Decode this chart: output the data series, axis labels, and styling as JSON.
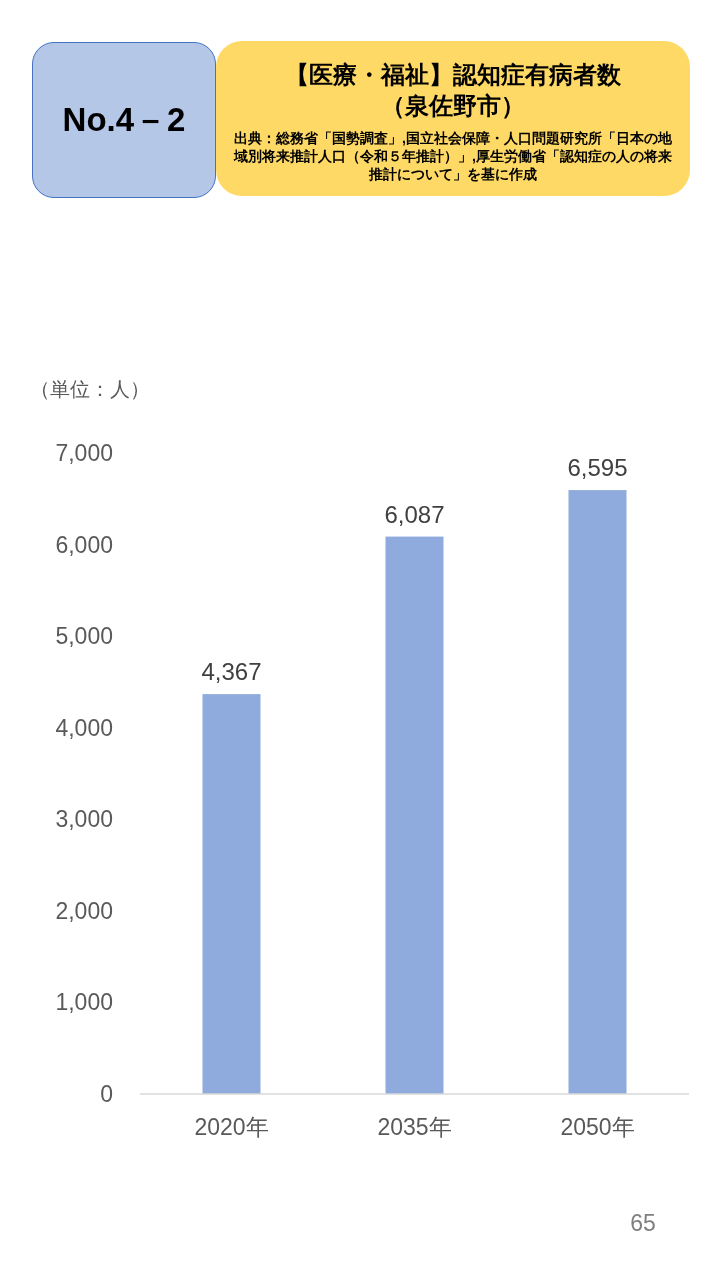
{
  "chart_data": {
    "type": "bar",
    "title": "【医療・福祉】認知症有病者数（泉佐野市）",
    "ylabel": "（単位：人）",
    "annotations": [
      "No.4－2",
      "出典：総務省「国勢調査」,国立社会保障・人口問題研究所「日本の地域別将来推計人口（令和５年推計）」,厚生労働省「認知症の人の将来推計について」を基に作成",
      "65"
    ],
    "categories": [
      "2020年",
      "2035年",
      "2050年"
    ],
    "values": [
      4367,
      6087,
      6595
    ],
    "value_labels": [
      "4,367",
      "6,087",
      "6,595"
    ],
    "color": "#8faadc",
    "ylim": [
      0,
      7000
    ],
    "yticks": [
      0,
      {
        "value": 1000,
        "label": "1,000"
      },
      {
        "value": 2000,
        "label": "2,000"
      },
      {
        "value": 3000,
        "label": "3,000"
      },
      {
        "value": 4000,
        "label": "4,000"
      },
      {
        "value": 5000,
        "label": "5,000"
      },
      {
        "value": 6000,
        "label": "6,000"
      },
      {
        "value": 7000,
        "label": "7,000"
      }
    ]
  }
}
